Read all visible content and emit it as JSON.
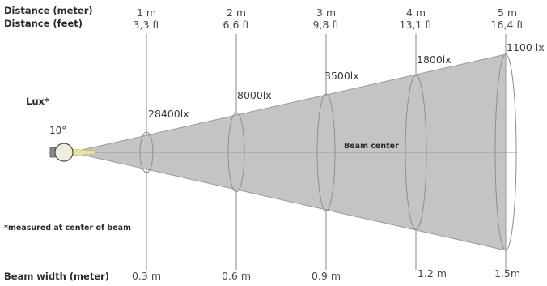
{
  "labels": {
    "distance_meter": "Distance (meter)",
    "distance_feet": "Distance (feet)",
    "lux": "Lux*",
    "beam_angle": "10°",
    "beam_center": "Beam center",
    "footnote": "*measured at center of beam",
    "beam_width": "Beam width (meter)"
  },
  "stations": [
    {
      "meter": "1 m",
      "feet": "3,3 ft",
      "lux": "28400lx",
      "width": "0.3 m"
    },
    {
      "meter": "2 m",
      "feet": "6,6 ft",
      "lux": "8000lx",
      "width": "0.6 m"
    },
    {
      "meter": "3 m",
      "feet": "9,8 ft",
      "lux": "3500lx",
      "width": "0.9 m"
    },
    {
      "meter": "4 m",
      "feet": "13,1 ft",
      "lux": "1800lx",
      "width": "1.2  m"
    },
    {
      "meter": "5 m",
      "feet": "16,4 ft",
      "lux": "1100  lx",
      "width": "1.5m"
    }
  ],
  "colors": {
    "beam_fill": "#c4c4c4",
    "beam_stroke": "#9a9a9a",
    "lines": "#8a8a8a",
    "lamp_body": "#efeede",
    "lamp_beam": "#e6e2a0"
  }
}
